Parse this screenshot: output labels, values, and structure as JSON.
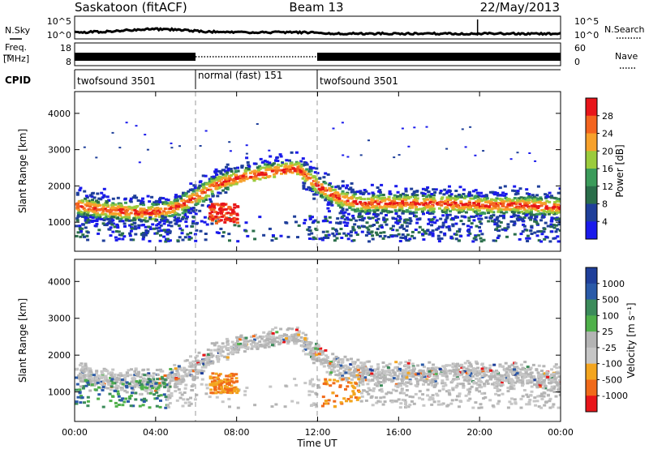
{
  "header": {
    "station": "Saskatoon (fitACF)",
    "beam": "Beam 13",
    "date": "22/May/2013"
  },
  "noise_panel": {
    "left_label": "N.Sky",
    "right_label": "N.Search",
    "left_ticks": [
      "10^5",
      "10^0"
    ],
    "right_ticks": [
      "10^5",
      "10^0"
    ]
  },
  "freq_panel": {
    "left_label_1": "Freq.",
    "left_label_2": "[MHz]",
    "right_label": "Nave",
    "left_ticks": [
      "18",
      "8"
    ],
    "right_ticks": [
      "60",
      "0"
    ]
  },
  "cpid": {
    "label": "CPID",
    "segments": [
      {
        "start": 0,
        "end": 6,
        "name": "twofsound 3501"
      },
      {
        "start": 6,
        "end": 12,
        "name": "normal (fast) 151"
      },
      {
        "start": 12,
        "end": 24,
        "name": "twofsound 3501"
      }
    ]
  },
  "chart_data": [
    {
      "type": "heatmap",
      "title": "",
      "xlabel": "",
      "ylabel": "Slant Range [km]",
      "xlim": [
        0,
        24
      ],
      "ylim": [
        200,
        4600
      ],
      "x_ticks": [
        0,
        4,
        8,
        12,
        16,
        20,
        24
      ],
      "y_ticks": [
        1000,
        2000,
        3000,
        4000
      ],
      "colorbar": {
        "label": "Power [dB]",
        "ticks": [
          "28",
          "24",
          "20",
          "16",
          "12",
          "8",
          "4"
        ],
        "colors": [
          "#e8151a",
          "#f3641f",
          "#f7a12b",
          "#9bcb3c",
          "#3b9b5a",
          "#2a6e4a",
          "#1f3f9a",
          "#1a1aeb"
        ]
      },
      "bands": [
        {
          "x": [
            0,
            1,
            2,
            3,
            4,
            5,
            6,
            7,
            8,
            9,
            10,
            11,
            12,
            13,
            14,
            16,
            18,
            20,
            22,
            24
          ],
          "range_km": [
            1500,
            1400,
            1350,
            1300,
            1300,
            1450,
            1750,
            2100,
            2250,
            2350,
            2450,
            2500,
            2000,
            1700,
            1550,
            1550,
            1550,
            1500,
            1500,
            1450
          ],
          "power_db": 24
        }
      ]
    },
    {
      "type": "heatmap",
      "title": "",
      "xlabel": "Time UT",
      "ylabel": "Slant Range [km]",
      "xlim": [
        0,
        24
      ],
      "ylim": [
        200,
        4600
      ],
      "x_tick_labels": [
        "00:00",
        "04:00",
        "08:00",
        "12:00",
        "16:00",
        "20:00",
        "00:00"
      ],
      "y_ticks": [
        1000,
        2000,
        3000,
        4000
      ],
      "colorbar": {
        "label": "Velocity [m s⁻¹]",
        "ticks": [
          "1000",
          "500",
          "100",
          "25",
          "-25",
          "-100",
          "-500",
          "-1000"
        ],
        "colors": [
          "#1f3f9a",
          "#2a5aa8",
          "#3b8b5a",
          "#4fb04a",
          "#b4b4b4",
          "#c6c6c6",
          "#f3a51f",
          "#f06a1a",
          "#e8151a"
        ]
      }
    }
  ]
}
